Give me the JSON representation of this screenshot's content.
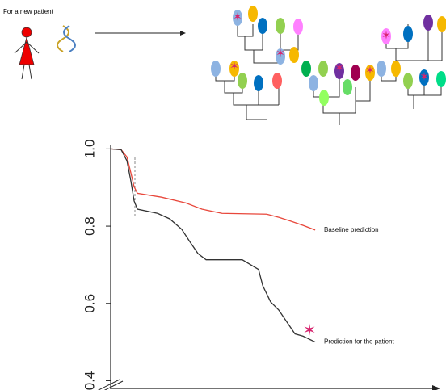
{
  "header": {
    "caption": "For a new patient"
  },
  "chart_data": {
    "type": "line",
    "x": null,
    "series": [
      {
        "name": "Baseline prediction",
        "color": "#e8473b",
        "x": [
          0,
          3.2,
          5.0,
          6.2,
          7.2,
          8.2,
          15.6,
          23.1,
          28.0,
          34.2,
          47.9,
          51.6,
          55.3,
          59.1,
          62.8
        ],
        "values": [
          1.0,
          0.998,
          0.979,
          0.938,
          0.902,
          0.885,
          0.875,
          0.86,
          0.844,
          0.833,
          0.831,
          0.823,
          0.813,
          0.802,
          0.79
        ]
      },
      {
        "name": "Prediction for the patient",
        "color": "#333333",
        "x": [
          0,
          3.2,
          5.0,
          6.2,
          7.2,
          8.2,
          14.4,
          18.1,
          21.8,
          24.3,
          26.8,
          29.3,
          40.4,
          45.4,
          46.7,
          49.1,
          51.6,
          54.1,
          56.6,
          59.1,
          62.8
        ],
        "values": [
          1.0,
          0.998,
          0.969,
          0.917,
          0.865,
          0.844,
          0.833,
          0.819,
          0.792,
          0.76,
          0.729,
          0.713,
          0.713,
          0.688,
          0.646,
          0.604,
          0.583,
          0.552,
          0.521,
          0.515,
          0.5
        ]
      }
    ],
    "xlim": [
      0,
      100
    ],
    "ylim": [
      0.38,
      1.005
    ],
    "yticks": [
      {
        "value": 1,
        "label": "1.0"
      },
      0.8,
      0.6,
      0.4
    ]
  }
}
